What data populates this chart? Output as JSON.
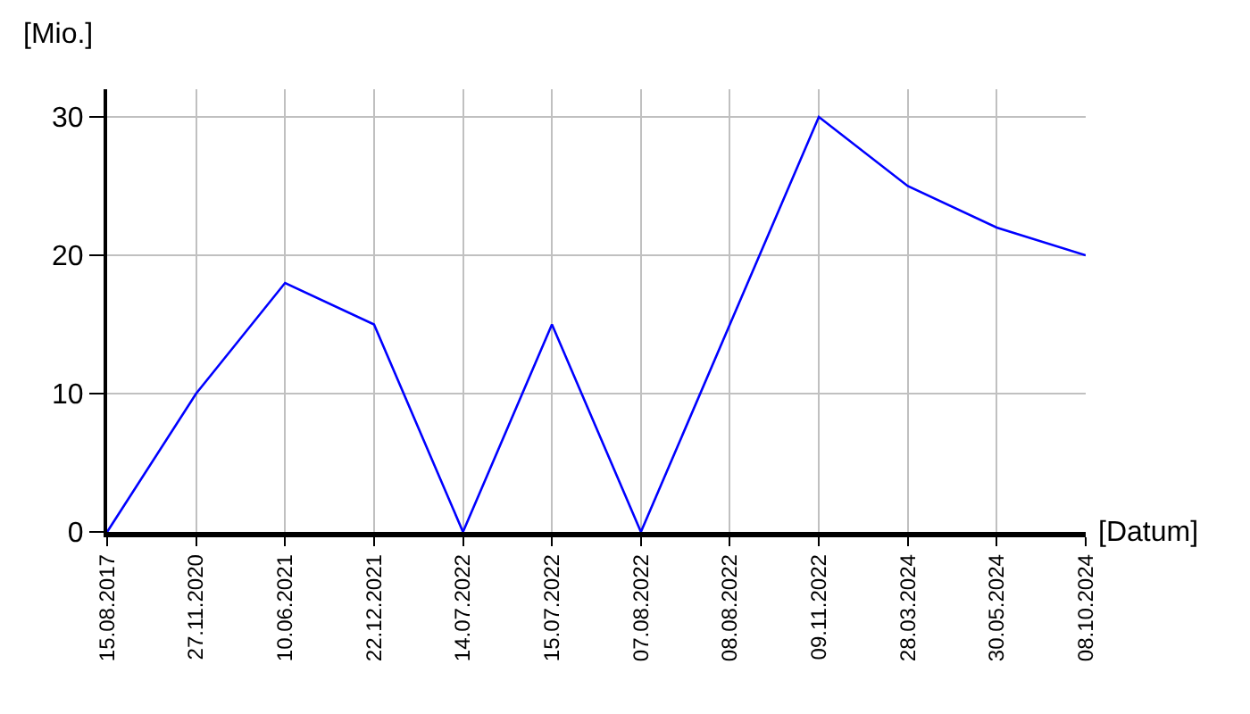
{
  "chart_data": {
    "type": "line",
    "xlabel": "[Datum]",
    "ylabel": "[Mio.]",
    "categories": [
      "15.08.2017",
      "27.11.2020",
      "10.06.2021",
      "22.12.2021",
      "14.07.2022",
      "15.07.2022",
      "07.08.2022",
      "08.08.2022",
      "09.11.2022",
      "28.03.2024",
      "30.05.2024",
      "08.10.2024"
    ],
    "series": [
      {
        "color": "#0000ff",
        "values": [
          0,
          10,
          18,
          15,
          0,
          15,
          0,
          15,
          30,
          25,
          22,
          20
        ]
      }
    ],
    "ylim": [
      0,
      32
    ],
    "yticks": [
      0,
      10,
      20,
      30
    ],
    "grid": true,
    "marker": "none",
    "line_style": "solid"
  }
}
